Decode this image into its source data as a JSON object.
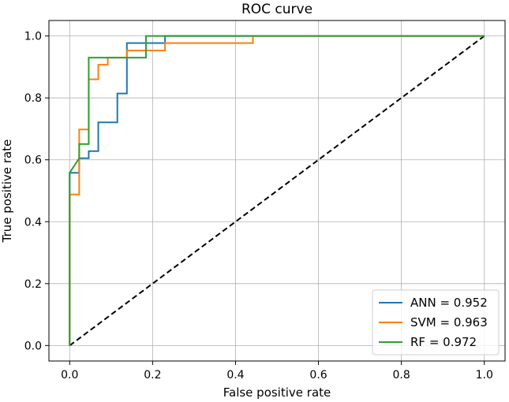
{
  "chart_data": {
    "type": "line",
    "title": "ROC curve",
    "xlabel": "False positive rate",
    "ylabel": "True positive rate",
    "xlim": [
      -0.05,
      1.05
    ],
    "ylim": [
      -0.05,
      1.05
    ],
    "xticks": [
      0.0,
      0.2,
      0.4,
      0.6,
      0.8,
      1.0
    ],
    "yticks": [
      0.0,
      0.2,
      0.4,
      0.6,
      0.8,
      1.0
    ],
    "xtick_labels": [
      "0.0",
      "0.2",
      "0.4",
      "0.6",
      "0.8",
      "1.0"
    ],
    "ytick_labels": [
      "0.0",
      "0.2",
      "0.4",
      "0.6",
      "0.8",
      "1.0"
    ],
    "grid": true,
    "legend_position": "lower-right",
    "series": [
      {
        "name": "ANN = 0.952",
        "color": "#1f77b4",
        "x": [
          0,
          0,
          0.023,
          0.023,
          0.046,
          0.046,
          0.069,
          0.069,
          0.115,
          0.115,
          0.138,
          0.138,
          0.23,
          0.23,
          1.0
        ],
        "y": [
          0,
          0.558,
          0.558,
          0.605,
          0.605,
          0.628,
          0.628,
          0.721,
          0.721,
          0.814,
          0.814,
          0.977,
          0.977,
          1.0,
          1.0
        ]
      },
      {
        "name": "SVM = 0.963",
        "color": "#ff7f0e",
        "x": [
          0,
          0,
          0.023,
          0.023,
          0.046,
          0.046,
          0.069,
          0.069,
          0.092,
          0.092,
          0.138,
          0.138,
          0.184,
          0.184,
          0.23,
          0.23,
          0.442,
          0.442,
          1.0
        ],
        "y": [
          0,
          0.488,
          0.488,
          0.698,
          0.698,
          0.86,
          0.86,
          0.907,
          0.907,
          0.93,
          0.93,
          0.953,
          0.953,
          0.953,
          0.953,
          0.977,
          0.977,
          1.0,
          1.0
        ]
      },
      {
        "name": "RF = 0.972",
        "color": "#2ca02c",
        "x": [
          0,
          0,
          0.023,
          0.023,
          0.046,
          0.046,
          0.184,
          0.184,
          1.0
        ],
        "y": [
          0,
          0.558,
          0.605,
          0.651,
          0.651,
          0.93,
          0.93,
          1.0,
          1.0
        ]
      }
    ],
    "reference_line": {
      "x": [
        0,
        1
      ],
      "y": [
        0,
        1
      ],
      "color": "#000000",
      "style": "dashed"
    }
  }
}
